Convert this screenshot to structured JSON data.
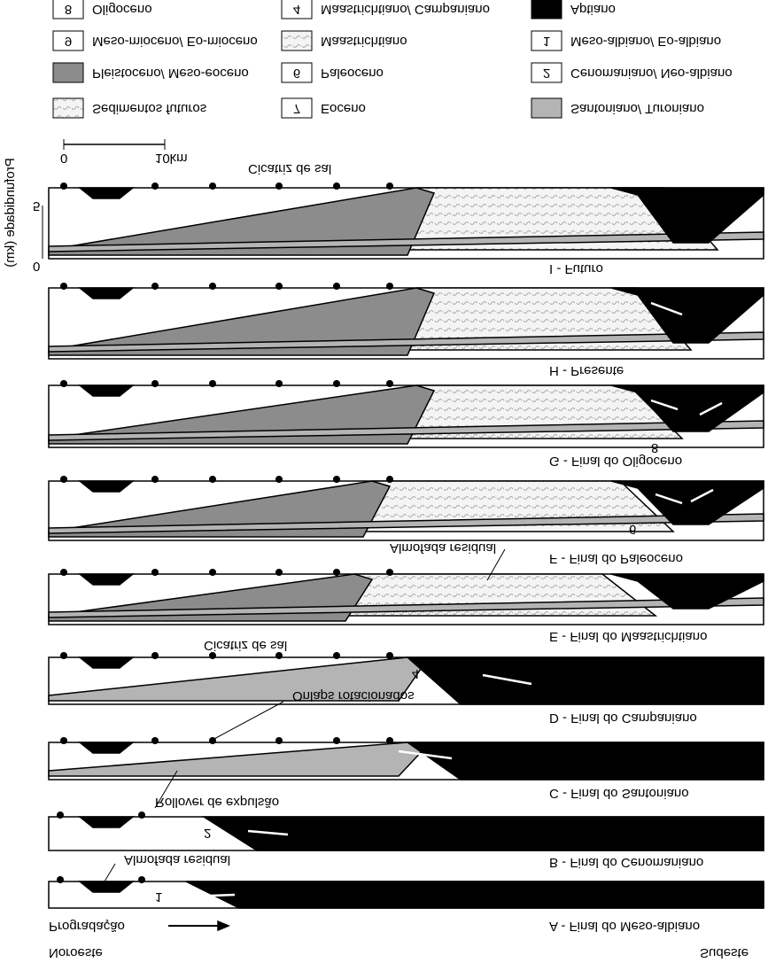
{
  "legend": [
    {
      "code": "8",
      "label": "Oligoceno",
      "color": "#ffffff"
    },
    {
      "code": "9",
      "label": "Meso-mioceno/ Eo-mioceno",
      "color": "#ffffff"
    },
    {
      "label": "Pleistoceno/ Meso-eoceno",
      "color": "#8c8c8c"
    },
    {
      "label": "Sedimentos futuros",
      "color": "dotted"
    },
    {
      "code": "4",
      "label": "Maastrichtiano/ Campaniano",
      "color": "#ffffff"
    },
    {
      "label": "Maastrichtiano",
      "color": "dotted"
    },
    {
      "code": "6",
      "label": "Paleoceno",
      "color": "#ffffff"
    },
    {
      "code": "7",
      "label": "Eoceno",
      "color": "#ffffff"
    },
    {
      "label": "Aptiano",
      "color": "#000000"
    },
    {
      "code": "1",
      "label": "Meso-albiano/ Eo-albiano",
      "color": "#ffffff"
    },
    {
      "code": "2",
      "label": "Cenomaniano/ Neo-albiano",
      "color": "#ffffff"
    },
    {
      "label": "Santoniano/ Turoniano",
      "color": "#b4b4b4"
    }
  ],
  "scale": {
    "start": "0",
    "end": "10km"
  },
  "depth_axis": {
    "label": "Profundidade (km)",
    "ticks": [
      "0",
      "5"
    ]
  },
  "sections": [
    "I - Futuro",
    "H - Presente",
    "G - Final do Oligoceno",
    "F - Final do Paleoceno",
    "E - Final do Maastrichtiano",
    "D - Final do Campaniano",
    "C - Final do Santoniano",
    "B - Final do Cenomaniano",
    "A - Final do Meso-albiano"
  ],
  "annotations": [
    "Cicatriz de sal",
    "Almofada residual",
    "Cicatriz de sal",
    "Onlaps rotacionados",
    "Rollover de expulsão",
    "Almofada residual",
    "8",
    "6",
    "4",
    "2",
    "1"
  ],
  "footer": {
    "direction": "Progradação",
    "left": "Noroeste",
    "right": "Sudeste"
  }
}
